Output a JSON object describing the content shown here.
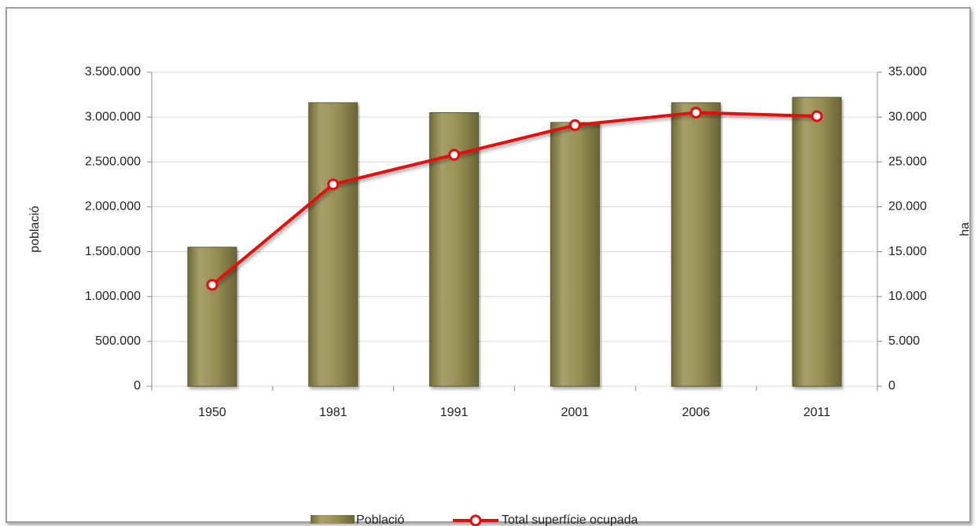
{
  "chart_data": {
    "type": "bar_line",
    "categories": [
      "1950",
      "1981",
      "1991",
      "2001",
      "2006",
      "2011"
    ],
    "series": [
      {
        "name": "Població",
        "type": "bar",
        "color": "#8f8850",
        "values": [
          1550000,
          3160000,
          3050000,
          2940000,
          3160000,
          3220000
        ]
      },
      {
        "name": "Total superfície ocupada",
        "type": "line",
        "axis": "y2",
        "color": "#e8090c",
        "values": [
          11300,
          22500,
          25800,
          29100,
          30500,
          30100
        ]
      }
    ],
    "ylabel": "població",
    "y2label": "ha",
    "ylim": [
      0,
      3500000
    ],
    "yticks": [
      0,
      {
        "value": 500000,
        "label": "500.000"
      },
      {
        "value": 1000000,
        "label": "1.000.000"
      },
      {
        "value": 1500000,
        "label": "1.500.000"
      },
      {
        "value": 2000000,
        "label": "2.000.000"
      },
      {
        "value": 2500000,
        "label": "2.500.000"
      },
      {
        "value": 3000000,
        "label": "3.000.000"
      },
      {
        "value": 3500000,
        "label": "3.500.000"
      }
    ],
    "y2lim": [
      0,
      35000
    ],
    "y2ticks": [
      0,
      {
        "value": 5000,
        "label": "5.000"
      },
      {
        "value": 10000,
        "label": "10.000"
      },
      {
        "value": 15000,
        "label": "15.000"
      },
      {
        "value": 20000,
        "label": "20.000"
      },
      {
        "value": 25000,
        "label": "25.000"
      },
      {
        "value": 30000,
        "label": "30.000"
      },
      {
        "value": 35000,
        "label": "35.000"
      }
    ],
    "grid": true,
    "legend": "bottom"
  }
}
